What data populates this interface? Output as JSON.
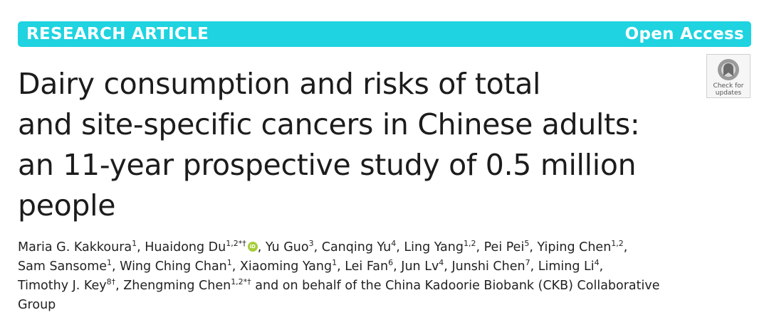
{
  "banner": {
    "left_label": "RESEARCH ARTICLE",
    "right_label": "Open Access",
    "color": "#1fd3e0"
  },
  "check_for_updates": {
    "line1": "Check for",
    "line2": "updates"
  },
  "title": {
    "lines": [
      "Dairy consumption and risks of total",
      "and site-specific cancers in Chinese adults:",
      "an 11-year prospective study of 0.5 million",
      "people"
    ]
  },
  "authors": [
    {
      "name": "Maria G. Kakkoura",
      "sup": "1",
      "sep": ", "
    },
    {
      "name": "Huaidong Du",
      "sup": "1,2*†",
      "orcid": true,
      "sep": ", "
    },
    {
      "name": "Yu Guo",
      "sup": "3",
      "sep": ", "
    },
    {
      "name": "Canqing Yu",
      "sup": "4",
      "sep": ", "
    },
    {
      "name": "Ling Yang",
      "sup": "1,2",
      "sep": ", "
    },
    {
      "name": "Pei Pei",
      "sup": "5",
      "sep": ", "
    },
    {
      "name": "Yiping Chen",
      "sup": "1,2",
      "sep": ","
    },
    {
      "name": "Sam Sansome",
      "sup": "1",
      "sep": ", "
    },
    {
      "name": "Wing Ching Chan",
      "sup": "1",
      "sep": ", "
    },
    {
      "name": "Xiaoming Yang",
      "sup": "1",
      "sep": ", "
    },
    {
      "name": "Lei Fan",
      "sup": "6",
      "sep": ", "
    },
    {
      "name": "Jun Lv",
      "sup": "4",
      "sep": ", "
    },
    {
      "name": "Junshi Chen",
      "sup": "7",
      "sep": ", "
    },
    {
      "name": "Liming Li",
      "sup": "4",
      "sep": ","
    },
    {
      "name": "Timothy J. Key",
      "sup": "8†",
      "sep": ", "
    },
    {
      "name": "Zhengming Chen",
      "sup": "1,2*†",
      "sep": " and on behalf of the China Kadoorie Biobank (CKB) Collaborative"
    },
    {
      "name": "Group",
      "sup": "",
      "sep": ""
    }
  ]
}
